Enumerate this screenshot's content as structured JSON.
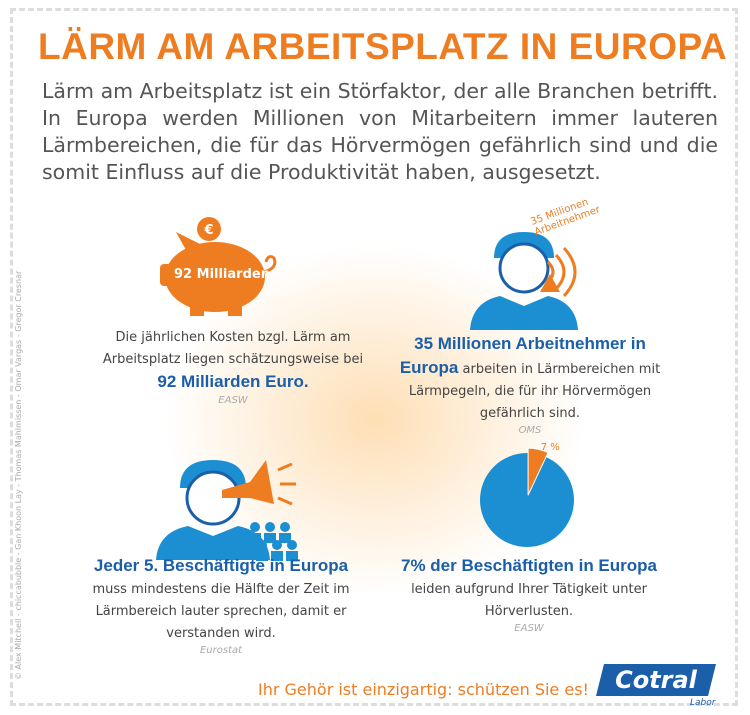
{
  "title": "LÄRM AM ARBEITSPLATZ IN EUROPA",
  "intro": "Lärm am Arbeitsplatz ist ein Störfaktor, der alle Branchen betrifft. In Europa werden Millionen von Mitarbeitern immer lauteren Lärmbereichen, die für das Hörvermögen gefährlich sind und die somit Einfluss auf die Produktivität haben, ausgesetzt.",
  "credits": "© Alex Mitchell - chiccabubble - Gan Khoon Lay - Thomas Mahlmissen - Omar Vargas - Gregor Cresnar",
  "items": [
    {
      "icon": {
        "coin": "€",
        "label": "92 Milliarden"
      },
      "body": "Die jährlichen Kosten bzgl. Lärm am Arbeitsplatz liegen schätzungsweise bei",
      "highlight": "92 Milliarden Euro.",
      "source": "EASW"
    },
    {
      "icon": {
        "lines": [
          "35 Millionen",
          "Arbeitnehmer"
        ]
      },
      "highlight": "35 Millionen Arbeitnehmer in Europa",
      "body": "arbeiten in Lärmbereichen mit Lärmpegeln, die für ihr Hörvermögen gefährlich sind.",
      "source": "OMS"
    },
    {
      "highlight": "Jeder 5. Beschäftigte in Europa",
      "body": "muss mindestens die Hälfte der Zeit im Lärmbereich lauter sprechen, damit er verstanden wird.",
      "source": "Eurostat"
    },
    {
      "pie": {
        "values": [
          7
        ],
        "value_labels": [
          "7 %"
        ]
      },
      "highlight": "7% der Beschäftigten in Europa",
      "body": "leiden aufgrund Ihrer Tätigkeit unter Hörverlusten.",
      "source": "EASW"
    }
  ],
  "footer": {
    "tagline": "Ihr Gehör ist einzigartig: schützen Sie es!",
    "logo": "Cotral",
    "logo_sub": "Labor"
  }
}
